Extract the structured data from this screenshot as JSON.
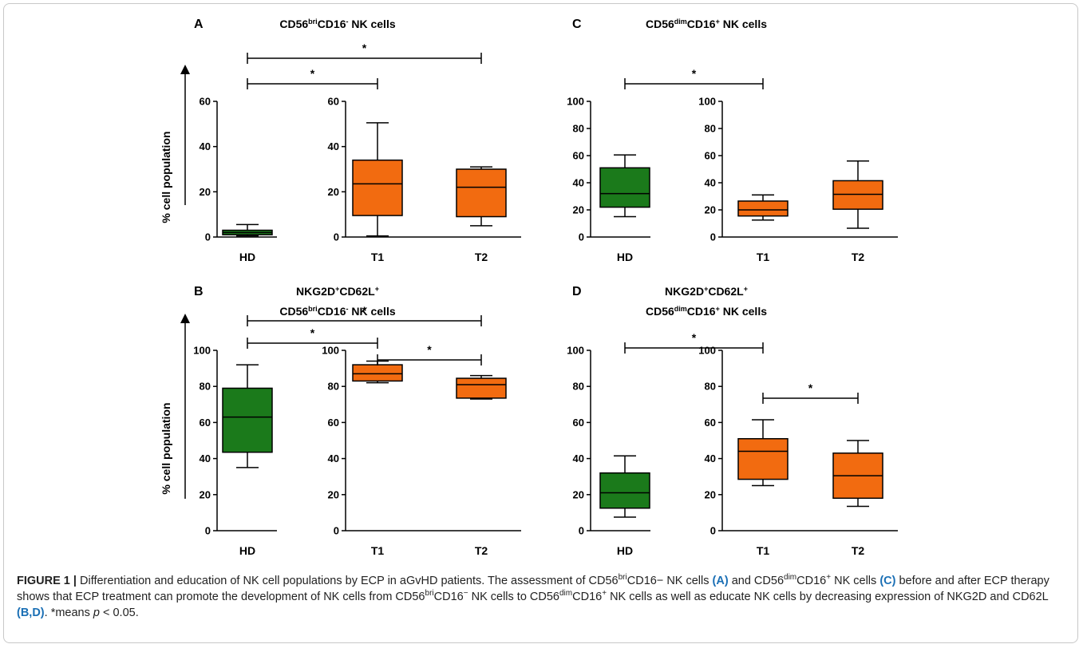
{
  "colors": {
    "green": "#1b7a1b",
    "orange": "#f26b10",
    "caption_label": "#1a6fb5"
  },
  "ylabel_text": "% cell population",
  "panels": [
    {
      "id": "A",
      "title_lines": [
        [
          {
            "t": "CD56"
          },
          {
            "t": "bri",
            "sup": true
          },
          {
            "t": "CD16"
          },
          {
            "t": "-",
            "sup": true
          },
          {
            "t": " NK cells"
          }
        ]
      ],
      "ylim": [
        0,
        60
      ],
      "yticks": [
        0,
        20,
        40,
        60
      ],
      "boxes": [
        {
          "group": "HD",
          "color": "green",
          "min": 0.5,
          "q1": 1,
          "median": 2,
          "q3": 3,
          "max": 5.5
        },
        {
          "group": "T1",
          "color": "orange",
          "min": 0.5,
          "q1": 9.5,
          "median": 23.5,
          "q3": 34,
          "max": 50.5
        },
        {
          "group": "T2",
          "color": "orange",
          "min": 5,
          "q1": 9,
          "median": 22,
          "q3": 30,
          "max": 31
        }
      ],
      "significance": [
        {
          "from": "HD",
          "to": "T1",
          "label": "*"
        },
        {
          "from": "HD",
          "to": "T2",
          "label": "*"
        }
      ]
    },
    {
      "id": "C",
      "title_lines": [
        [
          {
            "t": "CD56"
          },
          {
            "t": "dim",
            "sup": true
          },
          {
            "t": "CD16"
          },
          {
            "t": "+",
            "sup": true
          },
          {
            "t": " NK cells"
          }
        ]
      ],
      "ylim": [
        0,
        100
      ],
      "yticks": [
        0,
        20,
        40,
        60,
        80,
        100
      ],
      "boxes": [
        {
          "group": "HD",
          "color": "green",
          "min": 15,
          "q1": 22,
          "median": 32,
          "q3": 51,
          "max": 60.5
        },
        {
          "group": "T1",
          "color": "orange",
          "min": 12.5,
          "q1": 15.5,
          "median": 20,
          "q3": 26.5,
          "max": 31
        },
        {
          "group": "T2",
          "color": "orange",
          "min": 6.5,
          "q1": 20.5,
          "median": 31.5,
          "q3": 41.5,
          "max": 56
        }
      ],
      "significance": [
        {
          "from": "HD",
          "to": "T1",
          "label": "*"
        }
      ]
    },
    {
      "id": "B",
      "title_lines": [
        [
          {
            "t": "NKG2D"
          },
          {
            "t": "+",
            "sup": true
          },
          {
            "t": "CD62L"
          },
          {
            "t": "+",
            "sup": true
          }
        ],
        [
          {
            "t": "CD56"
          },
          {
            "t": "bri",
            "sup": true
          },
          {
            "t": "CD16"
          },
          {
            "t": "-",
            "sup": true
          },
          {
            "t": " NK cells"
          }
        ]
      ],
      "ylim": [
        0,
        100
      ],
      "yticks": [
        0,
        20,
        40,
        60,
        80,
        100
      ],
      "boxes": [
        {
          "group": "HD",
          "color": "green",
          "min": 35,
          "q1": 43.5,
          "median": 63,
          "q3": 79,
          "max": 92
        },
        {
          "group": "T1",
          "color": "orange",
          "min": 82,
          "q1": 83,
          "median": 87,
          "q3": 92,
          "max": 94
        },
        {
          "group": "T2",
          "color": "orange",
          "min": 73,
          "q1": 73.5,
          "median": 81,
          "q3": 84.5,
          "max": 86
        }
      ],
      "significance": [
        {
          "from": "HD",
          "to": "T1",
          "label": "*"
        },
        {
          "from": "HD",
          "to": "T2",
          "label": "*"
        },
        {
          "from": "T1",
          "to": "T2",
          "label": "*"
        }
      ]
    },
    {
      "id": "D",
      "title_lines": [
        [
          {
            "t": "NKG2D"
          },
          {
            "t": "+",
            "sup": true
          },
          {
            "t": "CD62L"
          },
          {
            "t": "+",
            "sup": true
          }
        ],
        [
          {
            "t": "CD56"
          },
          {
            "t": "dim",
            "sup": true
          },
          {
            "t": "CD16"
          },
          {
            "t": "+",
            "sup": true
          },
          {
            "t": " NK cells"
          }
        ]
      ],
      "ylim": [
        0,
        100
      ],
      "yticks": [
        0,
        20,
        40,
        60,
        80,
        100
      ],
      "boxes": [
        {
          "group": "HD",
          "color": "green",
          "min": 7.5,
          "q1": 12.5,
          "median": 21,
          "q3": 32,
          "max": 41.5
        },
        {
          "group": "T1",
          "color": "orange",
          "min": 25,
          "q1": 28.5,
          "median": 44,
          "q3": 51,
          "max": 61.5
        },
        {
          "group": "T2",
          "color": "orange",
          "min": 13.5,
          "q1": 18,
          "median": 30.5,
          "q3": 43,
          "max": 50
        }
      ],
      "significance": [
        {
          "from": "HD",
          "to": "T1",
          "label": "*"
        },
        {
          "from": "T1",
          "to": "T2",
          "label": "*"
        }
      ]
    }
  ],
  "chart_data": [
    {
      "panel": "A",
      "type": "box",
      "title": "CD56briCD16- NK cells",
      "ylabel": "% cell population",
      "categories": [
        "HD",
        "T1",
        "T2"
      ],
      "ylim": [
        0,
        60
      ],
      "series": [
        {
          "values": [
            {
              "min": 0.5,
              "q1": 1,
              "median": 2,
              "q3": 3,
              "max": 5.5
            },
            {
              "min": 0.5,
              "q1": 9.5,
              "median": 23.5,
              "q3": 34,
              "max": 50.5
            },
            {
              "min": 5,
              "q1": 9,
              "median": 22,
              "q3": 30,
              "max": 31
            }
          ]
        }
      ],
      "annotations": [
        "* HD vs T1",
        "* HD vs T2"
      ]
    },
    {
      "panel": "C",
      "type": "box",
      "title": "CD56dimCD16+ NK cells",
      "categories": [
        "HD",
        "T1",
        "T2"
      ],
      "ylim": [
        0,
        100
      ],
      "series": [
        {
          "values": [
            {
              "min": 15,
              "q1": 22,
              "median": 32,
              "q3": 51,
              "max": 60.5
            },
            {
              "min": 12.5,
              "q1": 15.5,
              "median": 20,
              "q3": 26.5,
              "max": 31
            },
            {
              "min": 6.5,
              "q1": 20.5,
              "median": 31.5,
              "q3": 41.5,
              "max": 56
            }
          ]
        }
      ],
      "annotations": [
        "* HD vs T1"
      ]
    },
    {
      "panel": "B",
      "type": "box",
      "title": "NKG2D+CD62L+ CD56briCD16- NK cells",
      "ylabel": "% cell population",
      "categories": [
        "HD",
        "T1",
        "T2"
      ],
      "ylim": [
        0,
        100
      ],
      "series": [
        {
          "values": [
            {
              "min": 35,
              "q1": 43.5,
              "median": 63,
              "q3": 79,
              "max": 92
            },
            {
              "min": 82,
              "q1": 83,
              "median": 87,
              "q3": 92,
              "max": 94
            },
            {
              "min": 73,
              "q1": 73.5,
              "median": 81,
              "q3": 84.5,
              "max": 86
            }
          ]
        }
      ],
      "annotations": [
        "* HD vs T1",
        "* HD vs T2",
        "* T1 vs T2"
      ]
    },
    {
      "panel": "D",
      "type": "box",
      "title": "NKG2D+CD62L+ CD56dimCD16+ NK cells",
      "categories": [
        "HD",
        "T1",
        "T2"
      ],
      "ylim": [
        0,
        100
      ],
      "series": [
        {
          "values": [
            {
              "min": 7.5,
              "q1": 12.5,
              "median": 21,
              "q3": 32,
              "max": 41.5
            },
            {
              "min": 25,
              "q1": 28.5,
              "median": 44,
              "q3": 51,
              "max": 61.5
            },
            {
              "min": 13.5,
              "q1": 18,
              "median": 30.5,
              "q3": 43,
              "max": 50
            }
          ]
        }
      ],
      "annotations": [
        "* HD vs T1",
        "* T1 vs T2"
      ]
    }
  ],
  "caption": {
    "figure_label": "FIGURE 1 |",
    "parts": [
      {
        "t": " Differentiation and education of NK cell populations by ECP in aGvHD patients. The assessment of CD56"
      },
      {
        "t": "bri",
        "sup": true
      },
      {
        "t": "CD16−"
      },
      {
        "t": " NK cells "
      },
      {
        "t": "(A)",
        "label": true
      },
      {
        "t": " and CD56"
      },
      {
        "t": "dim",
        "sup": true
      },
      {
        "t": "CD16"
      },
      {
        "t": "+",
        "sup": true
      },
      {
        "t": " NK cells "
      },
      {
        "t": "(C)",
        "label": true
      },
      {
        "t": " before and after ECP therapy shows that ECP treatment can promote the development of NK cells from CD56"
      },
      {
        "t": "bri",
        "sup": true
      },
      {
        "t": "CD16"
      },
      {
        "t": "−",
        "sup": true
      },
      {
        "t": " NK cells to CD56"
      },
      {
        "t": "dim",
        "sup": true
      },
      {
        "t": "CD16"
      },
      {
        "t": "+",
        "sup": true
      },
      {
        "t": " NK cells as well as educate NK cells by decreasing expression of NKG2D and CD62L "
      },
      {
        "t": "(B,D)",
        "label": true
      },
      {
        "t": ". *means "
      },
      {
        "t": "p",
        "italic": true
      },
      {
        "t": " < 0.05."
      }
    ]
  }
}
